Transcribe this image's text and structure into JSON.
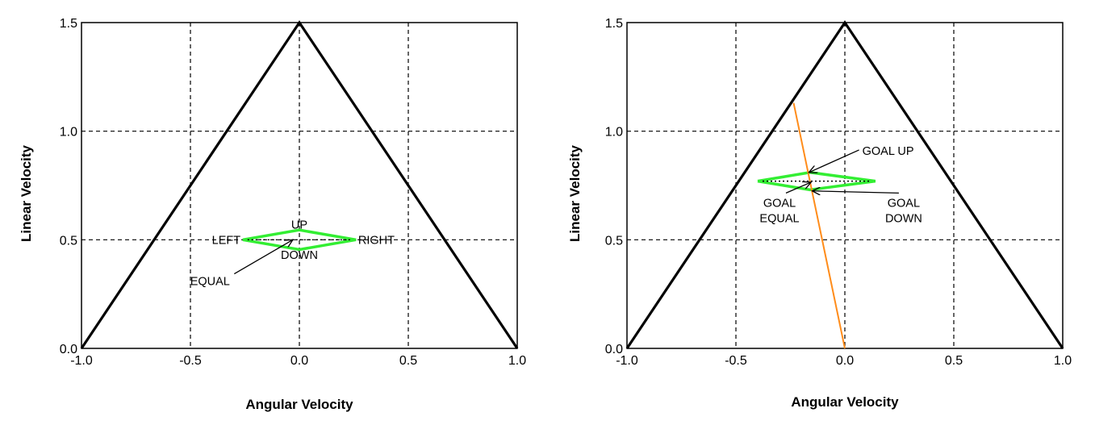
{
  "chart_data": [
    {
      "type": "line",
      "xlabel": "Angular Velocity",
      "ylabel": "Linear Velocity",
      "xlim": [
        -1.0,
        1.0
      ],
      "ylim": [
        0.0,
        1.5
      ],
      "xticks": [
        "-1.0",
        "-0.5",
        "0.0",
        "0.5",
        "1.0"
      ],
      "yticks": [
        "0.0",
        "0.5",
        "1.0",
        "1.5"
      ],
      "grid": true,
      "series": [
        {
          "color": "#000000",
          "x": [
            -1.0,
            0.0,
            1.0
          ],
          "y": [
            0.0,
            1.5,
            0.0
          ]
        },
        {
          "color": "#33ee33",
          "x": [
            -0.26,
            0.0,
            0.26,
            0.0,
            -0.26
          ],
          "y": [
            0.5,
            0.545,
            0.5,
            0.455,
            0.5
          ]
        }
      ],
      "annotations": [
        {
          "text": "UP",
          "x": 0.0,
          "y": 0.57
        },
        {
          "text": "LEFT",
          "x": -0.27,
          "y": 0.5
        },
        {
          "text": "RIGHT",
          "x": 0.27,
          "y": 0.5
        },
        {
          "text": "DOWN",
          "x": 0.0,
          "y": 0.43
        },
        {
          "text": "EQUAL",
          "x": -0.41,
          "y": 0.31,
          "arrow_to": [
            -0.03,
            0.5
          ]
        }
      ]
    },
    {
      "type": "line",
      "xlabel": "Angular Velocity",
      "ylabel": "Linear Velocity",
      "xlim": [
        -1.0,
        1.0
      ],
      "ylim": [
        0.0,
        1.5
      ],
      "xticks": [
        "-1.0",
        "-0.5",
        "0.0",
        "0.5",
        "1.0"
      ],
      "yticks": [
        "0.0",
        "0.5",
        "1.0",
        "1.5"
      ],
      "grid": true,
      "series": [
        {
          "color": "#000000",
          "x": [
            -1.0,
            0.0,
            1.0
          ],
          "y": [
            0.0,
            1.5,
            0.0
          ]
        },
        {
          "color": "#33ee33",
          "x": [
            -0.4,
            -0.16,
            0.14,
            -0.16,
            -0.4
          ],
          "y": [
            0.77,
            0.81,
            0.77,
            0.73,
            0.77
          ]
        },
        {
          "color": "#ff8c1a",
          "x": [
            -0.235,
            0.0
          ],
          "y": [
            1.13,
            0.0
          ]
        }
      ],
      "annotations": [
        {
          "text": "GOAL UP",
          "x": 0.08,
          "y": 0.91,
          "arrow_to": [
            -0.165,
            0.81
          ]
        },
        {
          "text": "GOAL",
          "x": -0.3,
          "y": 0.67
        },
        {
          "text": "EQUAL",
          "x": -0.3,
          "y": 0.6,
          "arrow_to": [
            -0.155,
            0.765
          ]
        },
        {
          "text": "GOAL",
          "x": 0.27,
          "y": 0.67
        },
        {
          "text": "DOWN",
          "x": 0.27,
          "y": 0.6,
          "arrow_to": [
            -0.15,
            0.725
          ]
        }
      ]
    }
  ]
}
